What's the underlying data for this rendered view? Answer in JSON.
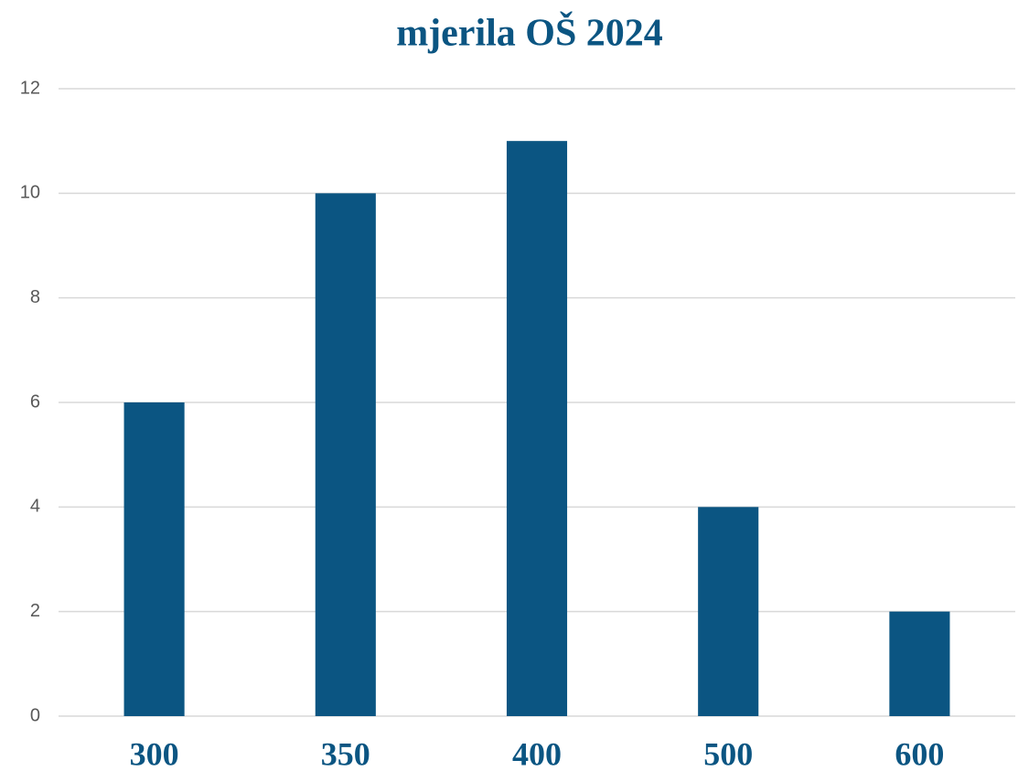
{
  "chart_data": {
    "type": "bar",
    "title": "mjerila OŠ 2024",
    "categories": [
      "300",
      "350",
      "400",
      "500",
      "600"
    ],
    "values": [
      6,
      10,
      11,
      4,
      2
    ],
    "color": "#0b5582",
    "ylim": [
      0,
      12
    ],
    "yticks": [
      0,
      2,
      4,
      6,
      8,
      10,
      12
    ],
    "grid": true
  }
}
